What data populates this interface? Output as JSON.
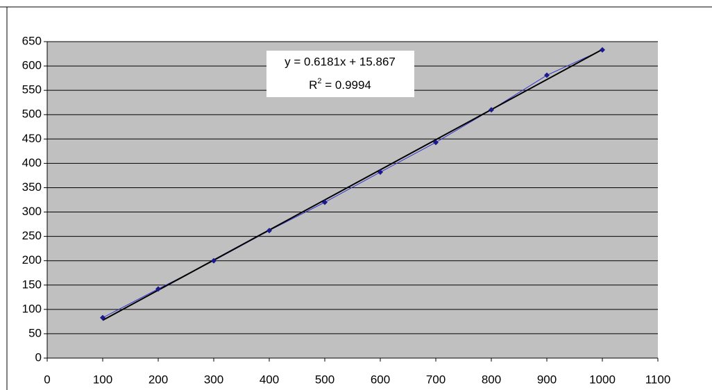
{
  "chart_data": {
    "type": "scatter",
    "x": [
      100,
      200,
      300,
      400,
      500,
      600,
      700,
      800,
      900,
      1000
    ],
    "series": [
      {
        "color": "#1a1a8c",
        "values": [
          83,
          142,
          200,
          262,
          320,
          382,
          443,
          510,
          581,
          633
        ]
      }
    ],
    "xlim": [
      0,
      1100
    ],
    "xticks": [
      0,
      100,
      200,
      300,
      400,
      500,
      600,
      700,
      800,
      900,
      1000,
      1100
    ],
    "ylim": [
      0,
      650
    ],
    "yticks": [
      0,
      50,
      100,
      150,
      200,
      250,
      300,
      350,
      400,
      450,
      500,
      550,
      600,
      650
    ],
    "grid": true,
    "trendline": {
      "slope": 0.6181,
      "intercept": 15.867,
      "color": "#000000",
      "equation": "y = 0.6181x + 15.867",
      "r_squared_label": {
        "base": "R",
        "exponent": "2",
        "rest": " = 0.9994"
      }
    }
  }
}
